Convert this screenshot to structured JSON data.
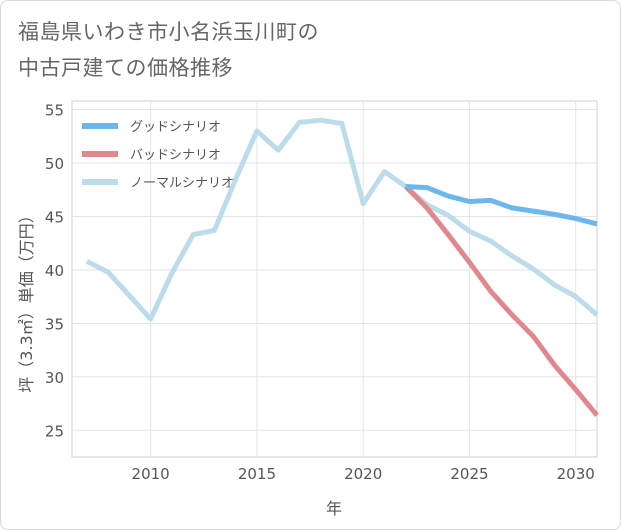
{
  "title_lines": [
    "福島県いわき市小名浜玉川町の",
    "中古戸建ての価格推移"
  ],
  "chart_data": {
    "type": "line",
    "xlabel": "年",
    "ylabel": "坪（3.3㎡）単価（万円）",
    "xlim": [
      2006.3,
      2031
    ],
    "ylim": [
      22.5,
      55.8
    ],
    "x_ticks": [
      2010,
      2015,
      2020,
      2025,
      2030
    ],
    "y_ticks": [
      25,
      30,
      35,
      40,
      45,
      50,
      55
    ],
    "grid": true,
    "legend_position": "top-left",
    "series": [
      {
        "name": "グッドシナリオ",
        "color": "#6cb7ec",
        "x": [
          2022,
          2023,
          2024,
          2025,
          2026,
          2027,
          2028,
          2029,
          2030,
          2031
        ],
        "y": [
          47.8,
          47.7,
          46.9,
          46.4,
          46.5,
          45.8,
          45.5,
          45.2,
          44.8,
          44.3
        ]
      },
      {
        "name": "バッドシナリオ",
        "color": "#e0878f",
        "x": [
          2022,
          2023,
          2024,
          2025,
          2026,
          2027,
          2028,
          2029,
          2030,
          2031
        ],
        "y": [
          47.8,
          45.8,
          43.3,
          40.7,
          38.0,
          35.8,
          33.8,
          31.1,
          28.8,
          26.4
        ]
      },
      {
        "name": "ノーマルシナリオ",
        "color": "#bcdcec",
        "x": [
          2007,
          2008,
          2009,
          2010,
          2011,
          2012,
          2013,
          2014,
          2015,
          2016,
          2017,
          2018,
          2019,
          2020,
          2021,
          2022,
          2023,
          2024,
          2025,
          2026,
          2027,
          2028,
          2029,
          2030,
          2031
        ],
        "y": [
          40.8,
          39.8,
          37.6,
          35.4,
          39.7,
          43.3,
          43.7,
          48.5,
          53.0,
          51.2,
          53.8,
          54.0,
          53.7,
          46.2,
          49.2,
          47.8,
          46.1,
          45.1,
          43.6,
          42.7,
          41.3,
          40.1,
          38.6,
          37.5,
          35.8
        ]
      }
    ]
  }
}
